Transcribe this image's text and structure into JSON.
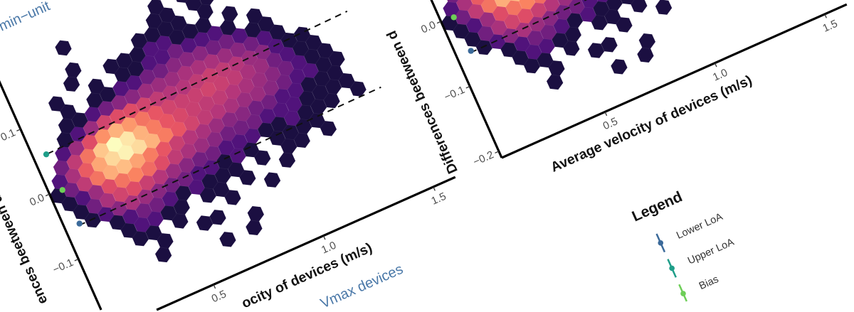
{
  "subtitles": {
    "top_left": "min−unit",
    "bottom": "Vmax devices"
  },
  "legend": {
    "title": "Legend",
    "items": [
      {
        "label": "Lower LoA",
        "color": "#3b6a9a"
      },
      {
        "label": "Upper LoA",
        "color": "#1f9e89"
      },
      {
        "label": "Bias",
        "color": "#6ece58"
      }
    ]
  },
  "chart_data": {
    "type": "heatmap",
    "subtype": "hexbin",
    "xlabel": "Average velocity of devices (m/s)",
    "ylabel": "Differences beetween d",
    "xlim": [
      0.03,
      1.6
    ],
    "ylim": [
      -0.21,
      0.2
    ],
    "x_ticks": [
      0.5,
      1.0,
      1.5
    ],
    "x_tick_labels": [
      "0.5",
      "1.0",
      "1.5"
    ],
    "y_ticks": [
      -0.2,
      -0.1,
      0.0,
      0.1
    ],
    "y_tick_labels": [
      "−0.2",
      "−0.1",
      "0.0",
      "0.1"
    ],
    "grid": false,
    "colormap": "magma",
    "hex_x_step": 0.06,
    "hexbins": [
      {
        "y": -0.16,
        "x0": 0.63,
        "counts": [
          1,
          0,
          1
        ]
      },
      {
        "y": -0.143,
        "x0": 0.36,
        "counts": [
          1,
          0,
          0,
          0,
          0,
          0,
          0,
          1
        ]
      },
      {
        "y": -0.126,
        "x0": 0.39,
        "counts": [
          1,
          0,
          0,
          1,
          1
        ]
      },
      {
        "y": -0.109,
        "x0": 0.3,
        "counts": [
          1,
          1,
          0,
          1,
          0,
          0,
          0,
          1,
          0,
          0,
          1
        ]
      },
      {
        "y": -0.092,
        "x0": 0.27,
        "counts": [
          1,
          2,
          2,
          1,
          1,
          0,
          1,
          1,
          0,
          1,
          0,
          0,
          1
        ]
      },
      {
        "y": -0.075,
        "x0": 0.24,
        "counts": [
          1,
          2,
          3,
          3,
          2,
          1,
          2,
          1,
          1,
          1,
          0,
          1,
          0,
          1,
          1,
          0,
          1
        ]
      },
      {
        "y": -0.058,
        "x0": 0.15,
        "counts": [
          1,
          2,
          4,
          6,
          5,
          4,
          3,
          3,
          2,
          2,
          1,
          2,
          1,
          0,
          1,
          1,
          1,
          1
        ]
      },
      {
        "y": -0.041,
        "x0": 0.12,
        "counts": [
          1,
          3,
          6,
          10,
          12,
          9,
          7,
          5,
          4,
          3,
          3,
          2,
          2,
          2,
          1,
          1,
          2,
          1,
          1,
          1,
          0,
          1
        ]
      },
      {
        "y": -0.024,
        "x0": 0.09,
        "counts": [
          1,
          2,
          5,
          12,
          20,
          24,
          18,
          12,
          8,
          6,
          5,
          4,
          3,
          3,
          3,
          2,
          2,
          2,
          1,
          1,
          1,
          1
        ]
      },
      {
        "y": -0.007,
        "x0": 0.06,
        "counts": [
          1,
          3,
          8,
          20,
          38,
          45,
          34,
          22,
          14,
          9,
          7,
          6,
          5,
          4,
          4,
          3,
          3,
          2,
          2,
          1,
          1,
          1
        ]
      },
      {
        "y": 0.01,
        "x0": 0.09,
        "counts": [
          2,
          6,
          15,
          35,
          60,
          80,
          62,
          40,
          22,
          14,
          10,
          8,
          7,
          6,
          5,
          5,
          4,
          3,
          2,
          2,
          1,
          1
        ]
      },
      {
        "y": 0.027,
        "x0": 0.12,
        "counts": [
          3,
          8,
          20,
          50,
          90,
          70,
          40,
          22,
          14,
          11,
          9,
          8,
          8,
          7,
          6,
          5,
          4,
          3,
          2,
          1,
          1
        ]
      },
      {
        "y": 0.044,
        "x0": 0.15,
        "counts": [
          2,
          5,
          12,
          28,
          40,
          30,
          20,
          14,
          10,
          9,
          9,
          10,
          9,
          8,
          6,
          5,
          3,
          2,
          1,
          1
        ]
      },
      {
        "y": 0.061,
        "x0": 0.18,
        "counts": [
          1,
          2,
          5,
          10,
          12,
          12,
          10,
          8,
          7,
          7,
          8,
          9,
          8,
          7,
          5,
          4,
          2,
          1,
          1
        ]
      },
      {
        "y": 0.078,
        "x0": 0.21,
        "counts": [
          1,
          1,
          2,
          3,
          4,
          4,
          5,
          5,
          5,
          6,
          6,
          6,
          5,
          4,
          3,
          2,
          1
        ]
      },
      {
        "y": 0.095,
        "x0": 0.24,
        "counts": [
          1,
          0,
          1,
          1,
          2,
          2,
          3,
          3,
          4,
          4,
          4,
          3,
          3,
          2,
          1,
          1
        ]
      },
      {
        "y": 0.112,
        "x0": 0.21,
        "counts": [
          1,
          0,
          0,
          1,
          0,
          1,
          1,
          2,
          2,
          3,
          2,
          2,
          2,
          1,
          0,
          1
        ]
      },
      {
        "y": 0.129,
        "x0": 0.3,
        "counts": [
          1,
          0,
          0,
          1,
          1,
          1,
          2,
          2,
          1,
          1,
          1,
          0,
          1
        ]
      },
      {
        "y": 0.146,
        "x0": 0.33,
        "counts": [
          1,
          0,
          0,
          0,
          0,
          1,
          1,
          1,
          1,
          0,
          1
        ]
      },
      {
        "y": 0.163,
        "x0": 0.72,
        "counts": [
          1,
          1,
          0,
          1,
          1
        ]
      },
      {
        "y": 0.18,
        "x0": 0.33,
        "counts": [
          1,
          0,
          0,
          0,
          0,
          0,
          0,
          1,
          0,
          1
        ]
      }
    ],
    "lines": [
      {
        "name": "Upper LoA",
        "style": "dashed",
        "x": [
          0.09,
          1.47
        ],
        "y": [
          0.053,
          0.065
        ]
      },
      {
        "name": "Lower LoA",
        "style": "dashed",
        "x": [
          0.09,
          1.47
        ],
        "y": [
          -0.057,
          -0.052
        ]
      }
    ],
    "points": [
      {
        "name": "Upper LoA",
        "x": 0.085,
        "y": 0.053,
        "color": "#1f9e89"
      },
      {
        "name": "Bias",
        "x": 0.086,
        "y": -0.002,
        "color": "#6ece58"
      },
      {
        "name": "Lower LoA",
        "x": 0.094,
        "y": -0.055,
        "color": "#3b6a9a"
      }
    ]
  }
}
